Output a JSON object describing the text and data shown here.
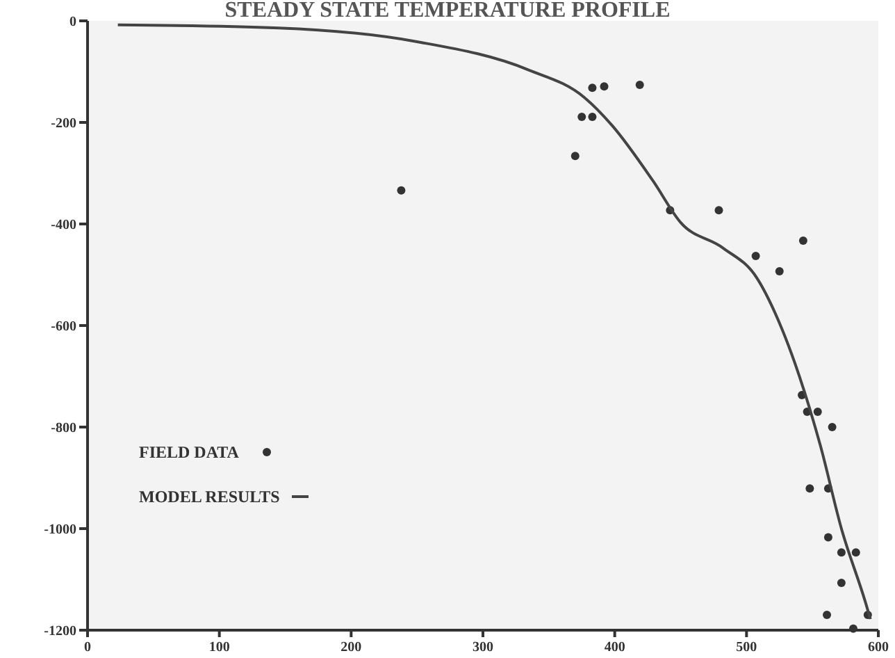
{
  "chart_data": {
    "type": "scatter",
    "title": "STEADY STATE TEMPERATURE PROFILE",
    "xlim": [
      0,
      600
    ],
    "xticks": [
      0,
      100,
      200,
      300,
      400,
      500,
      600
    ],
    "ylim": [
      -1200,
      0
    ],
    "yticks": [
      0,
      -200,
      -400,
      -600,
      -800,
      -1000,
      -1200
    ],
    "grid": false,
    "legend": "left",
    "series": [
      {
        "name": "FIELD DATA",
        "marker": "circle",
        "color": "#333333",
        "x": [
          383,
          392,
          419,
          375,
          383,
          370,
          238,
          442,
          479,
          507,
          525,
          543,
          542,
          546,
          554,
          565,
          548,
          562,
          562,
          572,
          583,
          572,
          561,
          592,
          581
        ],
        "values": [
          -132,
          -129,
          -126,
          -189,
          -189,
          -266,
          -334,
          -373,
          -373,
          -463,
          -493,
          -433,
          -737,
          -770,
          -770,
          -800,
          -921,
          -921,
          -1017,
          -1047,
          -1047,
          -1107,
          -1170,
          -1170,
          -1197
        ]
      },
      {
        "name": "MODEL RESULTS",
        "type": "line",
        "color": "#444444",
        "line_style": "solid",
        "x": [
          23,
          145,
          250,
          334,
          377,
          398,
          429,
          450,
          482,
          508,
          524,
          540,
          556,
          572,
          590,
          594
        ],
        "values": [
          -8,
          -14,
          -41,
          -96,
          -151,
          -206,
          -315,
          -397,
          -447,
          -507,
          -589,
          -699,
          -836,
          -1000,
          -1143,
          -1178
        ]
      }
    ]
  }
}
